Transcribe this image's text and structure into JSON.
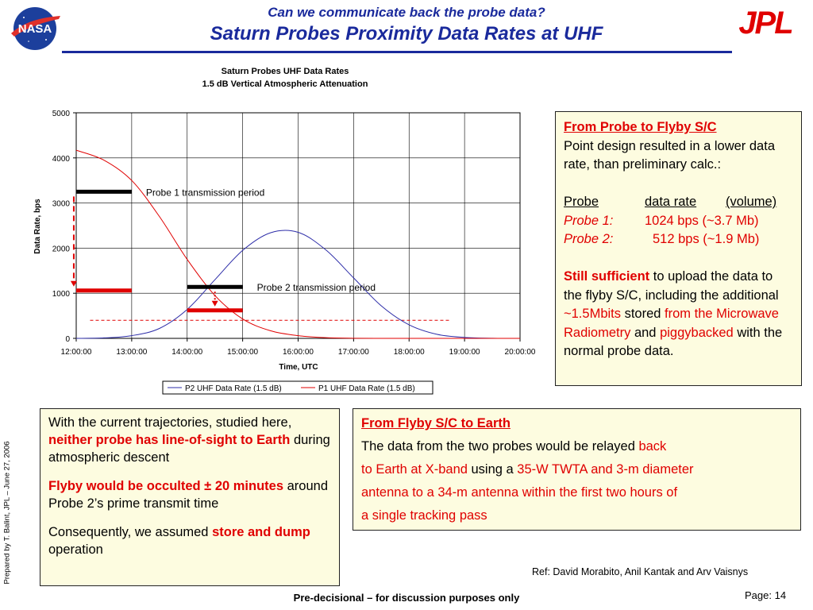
{
  "header": {
    "title_line1": "Can we communicate back the probe data?",
    "title_line2": "Saturn Probes Proximity Data Rates at UHF",
    "nasa_logo_text": "NASA",
    "jpl_logo_text": "JPL"
  },
  "chart_data": {
    "type": "line",
    "title": "Saturn Probes UHF Data Rates",
    "subtitle": "1.5 dB Vertical Atmospheric Attenuation",
    "xlabel": "Time, UTC",
    "ylabel": "Data Rate, bps",
    "ylim": [
      0,
      5000
    ],
    "yticks": [
      0,
      1000,
      2000,
      3000,
      4000,
      5000
    ],
    "xticks": [
      "12:00:00",
      "13:00:00",
      "14:00:00",
      "15:00:00",
      "16:00:00",
      "17:00:00",
      "18:00:00",
      "19:00:00",
      "20:00:00"
    ],
    "grid": true,
    "legend_position": "bottom",
    "x_hours": [
      12,
      12.5,
      13,
      13.5,
      14,
      14.5,
      15,
      15.5,
      16,
      16.5,
      17,
      17.5,
      18,
      18.5,
      19,
      19.5,
      20
    ],
    "series": [
      {
        "name": "P2 UHF Data Rate (1.5 dB)",
        "color": "#2d2da8",
        "values": [
          0,
          10,
          60,
          220,
          640,
          1300,
          1950,
          2340,
          2350,
          1960,
          1340,
          720,
          300,
          90,
          20,
          3,
          0
        ]
      },
      {
        "name": "P1 UHF Data Rate (1.5 dB)",
        "color": "#e00000",
        "values": [
          4170,
          3950,
          3500,
          2700,
          1750,
          950,
          430,
          170,
          60,
          15,
          3,
          0,
          0,
          0,
          0,
          0,
          0
        ]
      }
    ],
    "annotations": [
      {
        "text": "Probe 1 transmission period",
        "x_start": 12.0,
        "x_end": 13.0,
        "y": 3250,
        "reduced_y": 1060
      },
      {
        "text": "Probe 2 transmission period",
        "x_start": 14.0,
        "x_end": 15.0,
        "y": 1140,
        "reduced_y": 620
      }
    ],
    "reference_line": {
      "y": 400,
      "x_start": 12.25,
      "x_end": 18.75,
      "color": "#e00000",
      "style": "dashed"
    }
  },
  "box_right": {
    "heading": "From Probe to Flyby S/C",
    "line1": "Point design resulted in a lower data rate, than preliminary calc.:",
    "table_headers": [
      "Probe",
      "data rate",
      "(volume)"
    ],
    "rows": [
      {
        "probe": "Probe 1:",
        "rate": "1024 bps (~3.7 Mb)"
      },
      {
        "probe": "Probe 2:",
        "rate": "512 bps (~1.9 Mb)"
      }
    ],
    "p2_bold": "Still sufficient",
    "p2_a": " to upload the data to the flyby S/C, including the additional ",
    "p2_b": "~1.5Mbits",
    "p2_c": " stored ",
    "p2_d": "from the Microwave Radiometry",
    "p2_e": " and ",
    "p2_f": "piggybacked",
    "p2_g": " with the normal probe data."
  },
  "box_bottom_left": {
    "p1_a": "With the current trajectories, studied here, ",
    "p1_b": "neither probe has line-of-sight to Earth",
    "p1_c": " during atmospheric descent",
    "p2_a": "Flyby would be occulted ± 20 minutes",
    "p2_b": " around Probe 2’s prime transmit time",
    "p3_a": "Consequently, we assumed ",
    "p3_b": "store and dump",
    "p3_c": " operation"
  },
  "box_bottom_right": {
    "heading": "From Flyby S/C to Earth",
    "l1a": "The data from the two probes would be relayed ",
    "l1b": "back",
    "l2a": "to Earth at X-band",
    "l2b": " using a ",
    "l2c": "35-W TWTA and 3-m diameter",
    "l3": "antenna to a 34-m antenna within the first two hours of",
    "l4": "a single tracking pass"
  },
  "footer": {
    "prepared_by": "Prepared by T. Balint, JPL – June 27, 2006",
    "reference": "Ref: David Morabito, Anil Kantak and Arv Vaisnys",
    "disclaimer": "Pre-decisional – for discussion purposes only",
    "page": "Page: 14"
  },
  "colors": {
    "title_blue": "#1a2a9c",
    "accent_red": "#e00000",
    "box_fill": "#fdfce0"
  }
}
